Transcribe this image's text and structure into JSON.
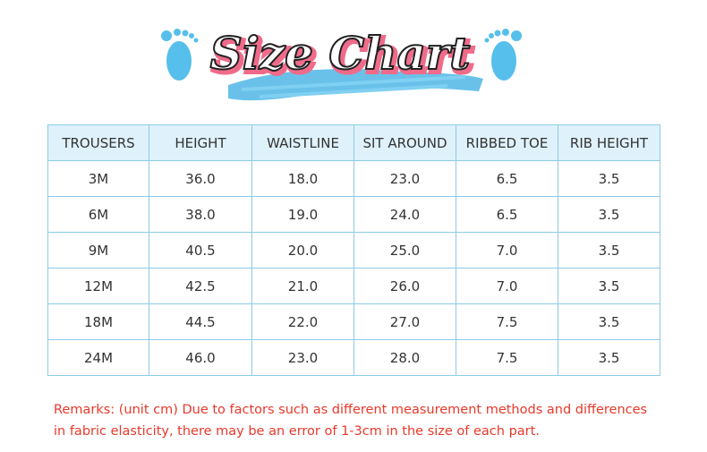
{
  "header": {
    "title": "Size Chart"
  },
  "table": {
    "columns": [
      "TROUSERS",
      "HEIGHT",
      "WAISTLINE",
      "SIT AROUND",
      "RIBBED TOE",
      "RIB HEIGHT"
    ],
    "rows": [
      [
        "3M",
        "36.0",
        "18.0",
        "23.0",
        "6.5",
        "3.5"
      ],
      [
        "6M",
        "38.0",
        "19.0",
        "24.0",
        "6.5",
        "3.5"
      ],
      [
        "9M",
        "40.5",
        "20.0",
        "25.0",
        "7.0",
        "3.5"
      ],
      [
        "12M",
        "42.5",
        "21.0",
        "26.0",
        "7.0",
        "3.5"
      ],
      [
        "18M",
        "44.5",
        "22.0",
        "27.0",
        "7.5",
        "3.5"
      ],
      [
        "24M",
        "46.0",
        "23.0",
        "28.0",
        "7.5",
        "3.5"
      ]
    ]
  },
  "remarks": "Remarks: (unit cm) Due to factors such as different measurement methods and differences in fabric elasticity, there may be an error of 1-3cm in the size of each part."
}
